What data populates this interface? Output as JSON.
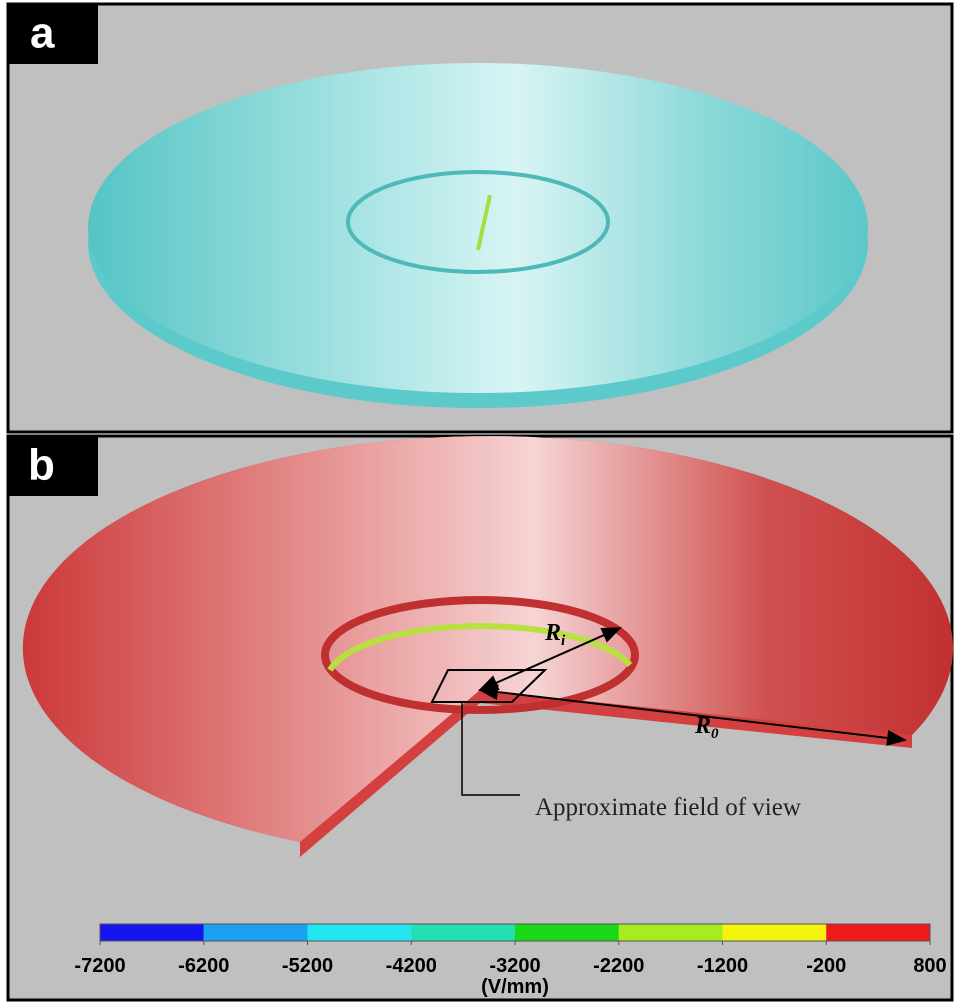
{
  "panels": [
    {
      "label": "a"
    },
    {
      "label": "b"
    }
  ],
  "annotations": {
    "ri": "R",
    "ri_sub": "i",
    "ro": "R",
    "ro_sub": "0",
    "field_of_view": "Approximate field of view"
  },
  "colorbar": {
    "ticks": [
      -7200,
      -6200,
      -5200,
      -4200,
      -3200,
      -2200,
      -1200,
      -200,
      800
    ],
    "colors": [
      "#1414ee",
      "#1aa0f5",
      "#22e6f0",
      "#24e0b0",
      "#18d818",
      "#a8ec20",
      "#f4f40c",
      "#ee1a1a"
    ],
    "unit": "(V/mm)"
  }
}
